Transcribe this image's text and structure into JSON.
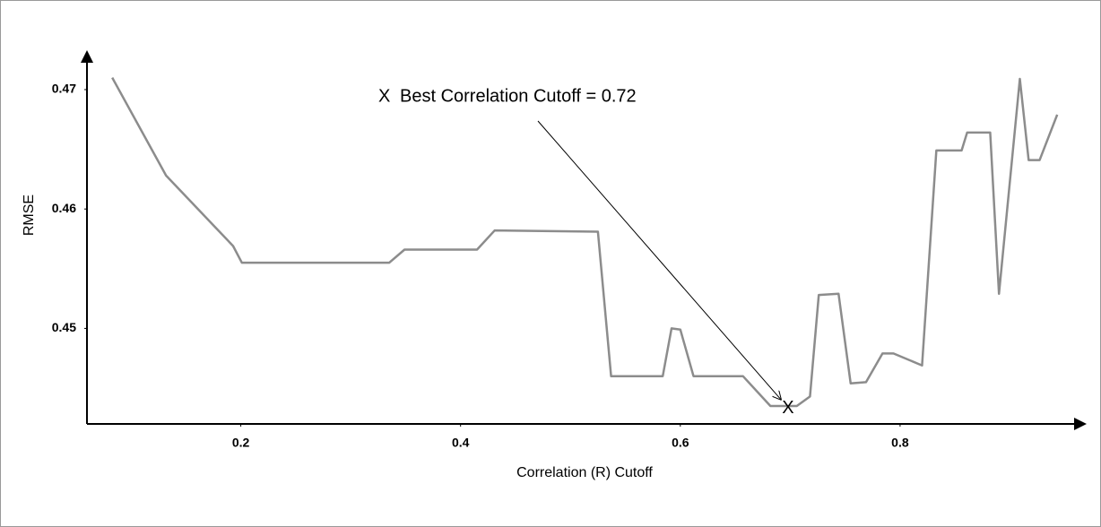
{
  "chart_data": {
    "type": "line",
    "xlabel": "Correlation (R) Cutoff",
    "ylabel": "RMSE",
    "xlim": [
      0.06,
      0.96
    ],
    "ylim": [
      0.442,
      0.473
    ],
    "xticks": [
      0.2,
      0.4,
      0.6,
      0.8
    ],
    "yticks": [
      0.45,
      0.46,
      0.47
    ],
    "series": [
      {
        "name": "RMSE",
        "color": "#8c8c8c",
        "x": [
          0.083,
          0.132,
          0.193,
          0.201,
          0.335,
          0.349,
          0.415,
          0.431,
          0.525,
          0.537,
          0.584,
          0.592,
          0.6,
          0.612,
          0.657,
          0.682,
          0.706,
          0.718,
          0.726,
          0.744,
          0.755,
          0.769,
          0.784,
          0.794,
          0.82,
          0.833,
          0.856,
          0.861,
          0.882,
          0.89,
          0.909,
          0.917,
          0.927,
          0.943
        ],
        "values": [
          0.471,
          0.4628,
          0.4569,
          0.4555,
          0.4555,
          0.4566,
          0.4566,
          0.4582,
          0.4581,
          0.446,
          0.446,
          0.45,
          0.4499,
          0.446,
          0.446,
          0.4435,
          0.4435,
          0.4443,
          0.4528,
          0.4529,
          0.4454,
          0.4455,
          0.4479,
          0.4479,
          0.4469,
          0.4649,
          0.4649,
          0.4664,
          0.4664,
          0.4529,
          0.4709,
          0.4641,
          0.4641,
          0.4679
        ]
      }
    ],
    "annotation": {
      "symbol": "X",
      "text": "Best Correlation Cutoff = 0.72",
      "color": "#ff0000",
      "x": 0.698,
      "y": 0.4433
    }
  }
}
